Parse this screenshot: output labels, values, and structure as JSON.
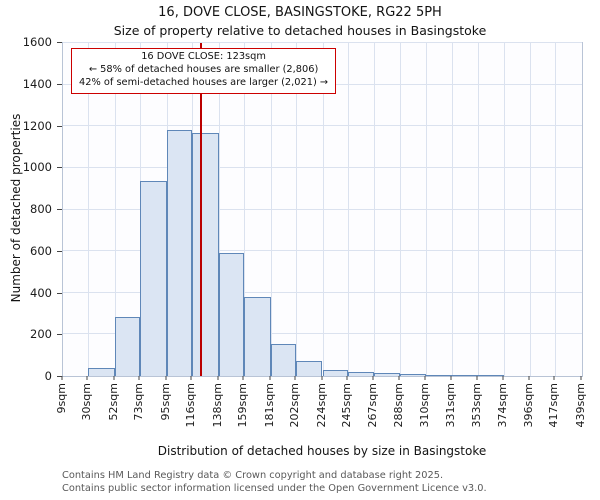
{
  "annotation": {
    "line1": "16 DOVE CLOSE: 123sqm",
    "line2": "← 58% of detached houses are smaller (2,806)",
    "line3": "42% of semi-detached houses are larger (2,021) →"
  },
  "footer": {
    "line1": "Contains HM Land Registry data © Crown copyright and database right 2025.",
    "line2": "Contains public sector information licensed under the Open Government Licence v3.0."
  },
  "chart_data": {
    "type": "bar",
    "title": "16, DOVE CLOSE, BASINGSTOKE, RG22 5PH",
    "subtitle": "Size of property relative to detached houses in Basingstoke",
    "xlabel": "Distribution of detached houses by size in Basingstoke",
    "ylabel": "Number of detached properties",
    "bin_edges": [
      9,
      30,
      52,
      73,
      95,
      116,
      138,
      159,
      181,
      202,
      224,
      245,
      267,
      288,
      310,
      331,
      353,
      374,
      396,
      417,
      439
    ],
    "x_tick_labels": [
      "9sqm",
      "30sqm",
      "52sqm",
      "73sqm",
      "95sqm",
      "116sqm",
      "138sqm",
      "159sqm",
      "181sqm",
      "202sqm",
      "224sqm",
      "245sqm",
      "267sqm",
      "288sqm",
      "310sqm",
      "331sqm",
      "353sqm",
      "374sqm",
      "396sqm",
      "417sqm",
      "439sqm"
    ],
    "values": [
      0,
      40,
      285,
      935,
      1180,
      1168,
      590,
      380,
      155,
      70,
      30,
      20,
      15,
      8,
      5,
      5,
      3,
      0,
      0,
      0
    ],
    "ylim": [
      0,
      1600
    ],
    "y_ticks": [
      0,
      200,
      400,
      600,
      800,
      1000,
      1200,
      1400,
      1600
    ],
    "grid": true,
    "marker_value": 123,
    "marker_color": "#bb0000",
    "bar_fill": "#dbe5f3",
    "bar_edge": "#5f87b8",
    "grid_color": "#dbe2ef"
  }
}
